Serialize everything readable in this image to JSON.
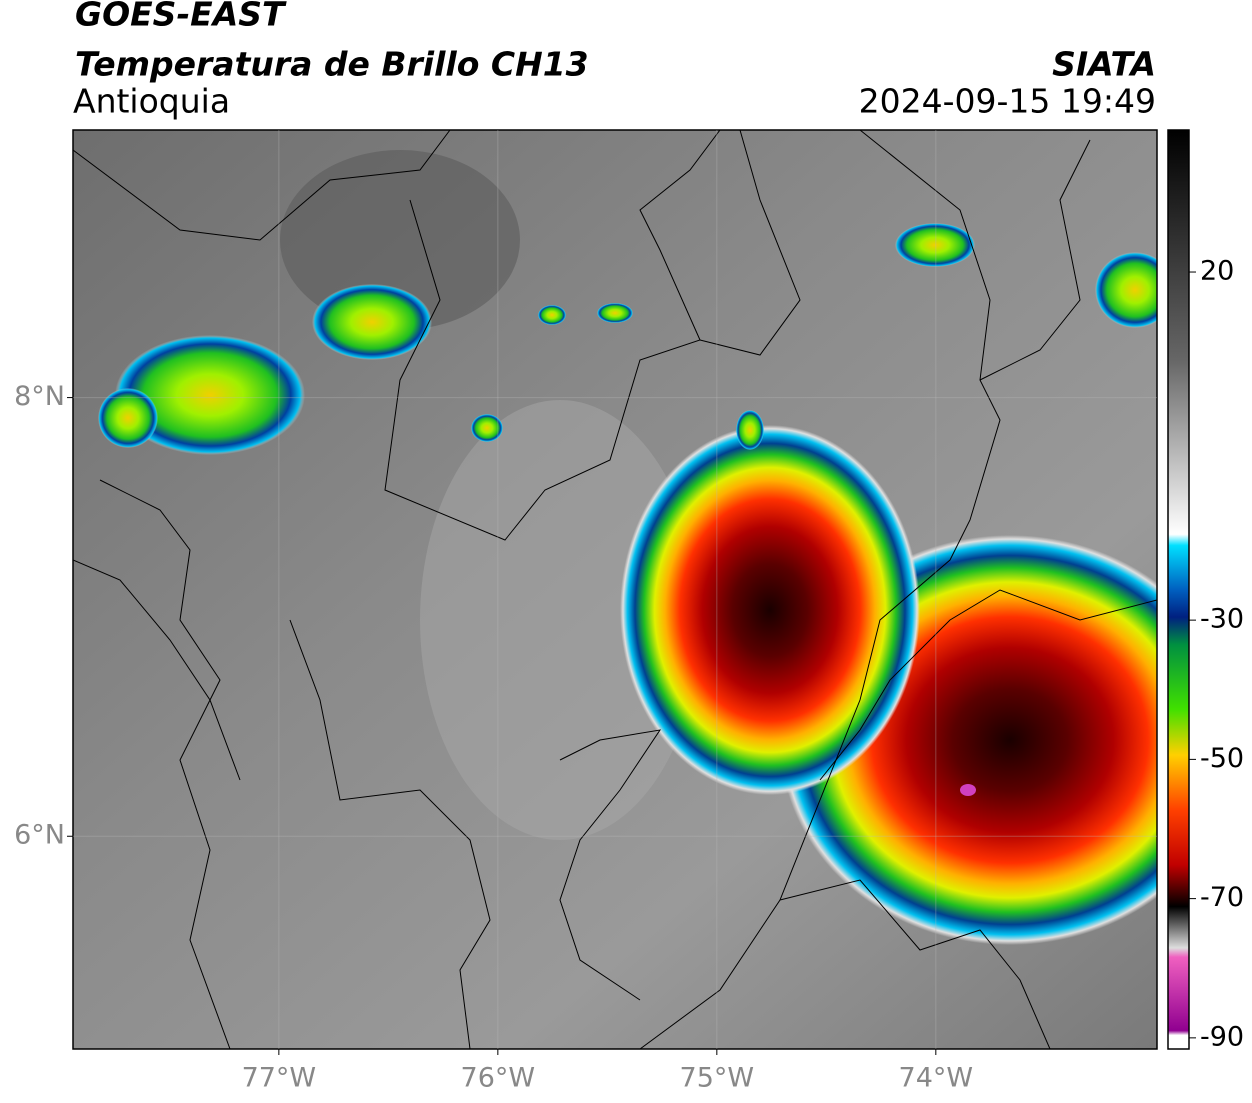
{
  "header": {
    "title": "GOES-EAST",
    "subtitle": "Temperatura de Brillo CH13",
    "region": "Antioquia",
    "source": "SIATA",
    "datetime": "2024-09-15 19:49"
  },
  "map": {
    "xlim": [
      -77.94,
      -72.99
    ],
    "ylim": [
      5.03,
      9.22
    ],
    "xticks": [
      {
        "value": -77,
        "label": "77°W"
      },
      {
        "value": -76,
        "label": "76°W"
      },
      {
        "value": -75,
        "label": "75°W"
      },
      {
        "value": -74,
        "label": "74°W"
      }
    ],
    "yticks": [
      {
        "value": 6,
        "label": "6°N"
      },
      {
        "value": 8,
        "label": "8°N"
      }
    ]
  },
  "colorbar": {
    "lim": [
      -91.6,
      40.4
    ],
    "ticks": [
      20,
      -30,
      -50,
      -70,
      -90
    ]
  }
}
